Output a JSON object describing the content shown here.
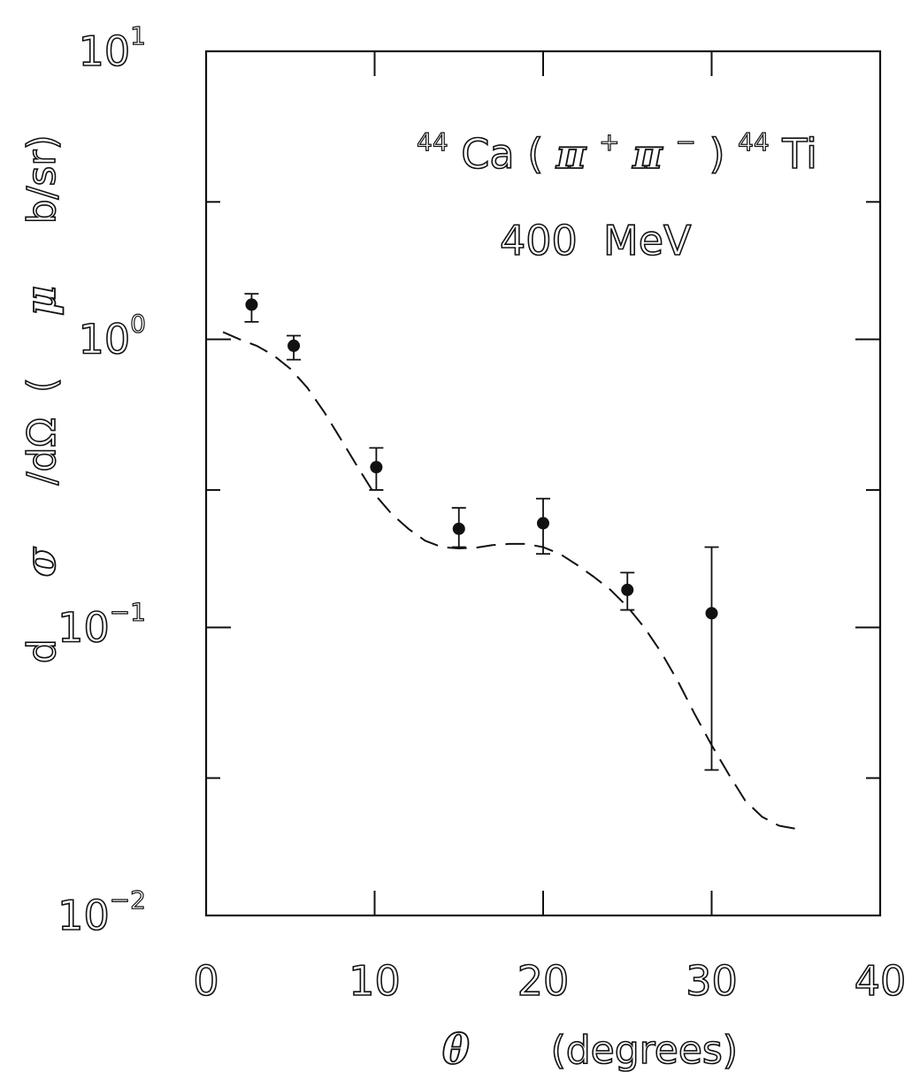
{
  "chart_data": {
    "type": "scatter",
    "title": "",
    "annotation": {
      "nucleus_a_mass": "44",
      "nucleus_a": "Ca",
      "pi": "π",
      "plus": "+",
      "minus": "−",
      "nucleus_b_mass": "44",
      "nucleus_b": "Ti",
      "energy": "400  MeV"
    },
    "xlabel": {
      "symbol": "θ",
      "text": "(degrees)"
    },
    "ylabel": {
      "text_a": "d",
      "sym_a": "σ",
      "text_b": "/dΩ  (",
      "sym_b": "μ",
      "text_c": "b/sr)"
    },
    "xlim": [
      0,
      40
    ],
    "ylim": [
      0.01,
      10
    ],
    "y_scale": "log",
    "x_ticks": [
      "0",
      "10",
      "20",
      "30",
      "40"
    ],
    "y_ticks": [
      {
        "base": "10",
        "exp": "-2"
      },
      {
        "base": "10",
        "exp": "-1"
      },
      {
        "base": "10",
        "exp": "0"
      },
      {
        "base": "10",
        "exp": "1"
      }
    ],
    "grid": false,
    "series": [
      {
        "kind": "data-with-error-bars",
        "x": [
          2.7,
          5.2,
          10.1,
          15.0,
          20.0,
          25.0,
          30.0
        ],
        "y": [
          1.32,
          0.95,
          0.36,
          0.22,
          0.23,
          0.135,
          0.112
        ],
        "y_low": [
          1.15,
          0.85,
          0.3,
          0.19,
          0.18,
          0.115,
          0.032
        ],
        "y_high": [
          1.44,
          1.03,
          0.42,
          0.26,
          0.28,
          0.155,
          0.19
        ]
      },
      {
        "kind": "dashed-theory-curve",
        "x": [
          1,
          2,
          3,
          4,
          5,
          6,
          7,
          8,
          9,
          10,
          11,
          12,
          13,
          14,
          15,
          16,
          17,
          18,
          19,
          20,
          21,
          22,
          23,
          24,
          25,
          26,
          27,
          28,
          29,
          30,
          31,
          32,
          33,
          34,
          35
        ],
        "y": [
          1.06,
          1.0,
          0.95,
          0.88,
          0.79,
          0.68,
          0.56,
          0.45,
          0.36,
          0.29,
          0.248,
          0.22,
          0.2,
          0.19,
          0.188,
          0.189,
          0.193,
          0.195,
          0.195,
          0.19,
          0.18,
          0.165,
          0.15,
          0.135,
          0.118,
          0.1,
          0.082,
          0.065,
          0.05,
          0.039,
          0.031,
          0.025,
          0.022,
          0.0205,
          0.02
        ]
      }
    ]
  }
}
